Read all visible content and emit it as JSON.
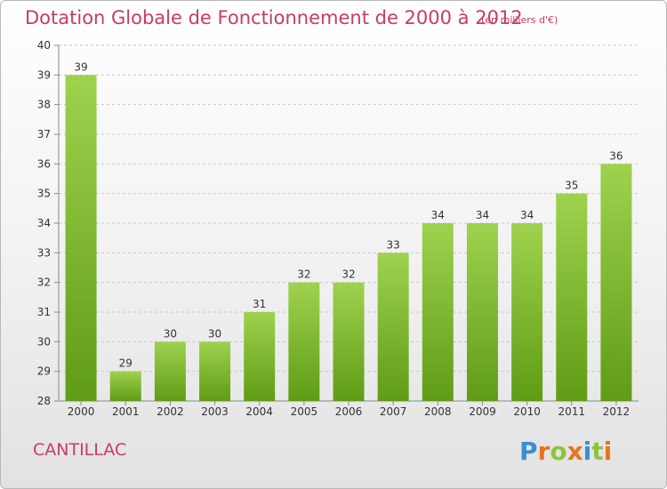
{
  "title": "Dotation Globale de Fonctionnement de 2000 à 2012",
  "subtitle": "(en milliers d'€)",
  "commune": "CANTILLAC",
  "brand": "Proxiti",
  "colors": {
    "accent": "#c83c64",
    "bar_light": "#9fd24e",
    "bar_dark": "#5f9c16",
    "grid": "#c8c8c8"
  },
  "chart_data": {
    "type": "bar",
    "title": "Dotation Globale de Fonctionnement de 2000 à 2012",
    "subtitle": "(en milliers d'€)",
    "xlabel": "",
    "ylabel": "",
    "categories": [
      "2000",
      "2001",
      "2002",
      "2003",
      "2004",
      "2005",
      "2006",
      "2007",
      "2008",
      "2009",
      "2010",
      "2011",
      "2012"
    ],
    "values": [
      39,
      29,
      30,
      30,
      31,
      32,
      32,
      33,
      34,
      34,
      34,
      35,
      36
    ],
    "ylim": [
      28,
      40
    ],
    "yticks": [
      28,
      29,
      30,
      31,
      32,
      33,
      34,
      35,
      36,
      37,
      38,
      39,
      40
    ],
    "grid": true,
    "data_labels": true
  }
}
